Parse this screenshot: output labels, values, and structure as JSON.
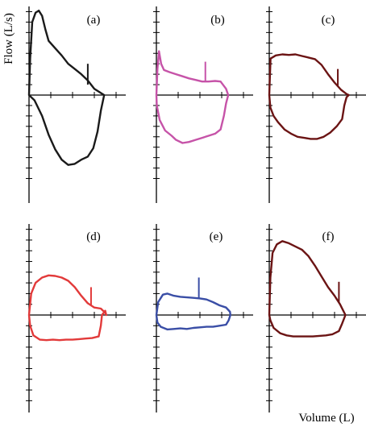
{
  "chart_data": {
    "type": "line",
    "xlabel": "Volume (L)",
    "ylabel": "Flow (L/s)",
    "grid": false,
    "panels": [
      {
        "label": "(a)",
        "color": "#1a1a1a",
        "xlim": [
          0,
          4
        ],
        "ylim": [
          -8,
          8.5
        ],
        "marker": {
          "x": 2.7,
          "y1": 1.0,
          "y2": 3.0
        },
        "expiratory": [
          [
            0,
            0
          ],
          [
            0.05,
            3.5
          ],
          [
            0.15,
            7.0
          ],
          [
            0.3,
            7.9
          ],
          [
            0.45,
            8.1
          ],
          [
            0.6,
            7.6
          ],
          [
            0.75,
            6.3
          ],
          [
            0.9,
            5.2
          ],
          [
            1.2,
            4.5
          ],
          [
            1.5,
            3.8
          ],
          [
            1.8,
            3.0
          ],
          [
            2.1,
            2.5
          ],
          [
            2.4,
            2.0
          ],
          [
            2.7,
            1.4
          ],
          [
            3.0,
            0.6
          ],
          [
            3.3,
            0.2
          ],
          [
            3.45,
            0
          ]
        ],
        "inspiratory": [
          [
            0,
            0
          ],
          [
            0.25,
            -0.5
          ],
          [
            0.6,
            -2.0
          ],
          [
            0.9,
            -3.8
          ],
          [
            1.2,
            -5.2
          ],
          [
            1.5,
            -6.2
          ],
          [
            1.8,
            -6.7
          ],
          [
            2.1,
            -6.6
          ],
          [
            2.4,
            -6.2
          ],
          [
            2.7,
            -5.9
          ],
          [
            2.95,
            -5.1
          ],
          [
            3.15,
            -3.5
          ],
          [
            3.3,
            -1.5
          ],
          [
            3.45,
            0
          ]
        ]
      },
      {
        "label": "(b)",
        "color": "#c653a8",
        "xlim": [
          0,
          4
        ],
        "ylim": [
          -8,
          8.5
        ],
        "marker": {
          "x": 2.25,
          "y1": 1.3,
          "y2": 3.2
        },
        "expiratory": [
          [
            0,
            0
          ],
          [
            0.05,
            2.5
          ],
          [
            0.12,
            4.2
          ],
          [
            0.22,
            3.0
          ],
          [
            0.35,
            2.4
          ],
          [
            0.6,
            2.2
          ],
          [
            0.9,
            2.0
          ],
          [
            1.2,
            1.8
          ],
          [
            1.5,
            1.6
          ],
          [
            1.8,
            1.45
          ],
          [
            2.1,
            1.3
          ],
          [
            2.4,
            1.3
          ],
          [
            2.7,
            1.35
          ],
          [
            2.95,
            1.3
          ],
          [
            3.2,
            0.6
          ],
          [
            3.3,
            0
          ]
        ],
        "inspiratory": [
          [
            0,
            0
          ],
          [
            0.02,
            -1.0
          ],
          [
            0.15,
            -2.4
          ],
          [
            0.4,
            -3.4
          ],
          [
            0.7,
            -3.9
          ],
          [
            0.9,
            -4.3
          ],
          [
            1.2,
            -4.6
          ],
          [
            1.5,
            -4.5
          ],
          [
            1.8,
            -4.3
          ],
          [
            2.1,
            -4.1
          ],
          [
            2.4,
            -3.9
          ],
          [
            2.7,
            -3.7
          ],
          [
            2.95,
            -3.3
          ],
          [
            3.1,
            -2.0
          ],
          [
            3.2,
            -0.8
          ],
          [
            3.3,
            0
          ]
        ]
      },
      {
        "label": "(c)",
        "color": "#6b1414",
        "xlim": [
          0,
          4
        ],
        "ylim": [
          -8,
          8.5
        ],
        "marker": {
          "x": 3.15,
          "y1": 0.9,
          "y2": 2.5
        },
        "expiratory": [
          [
            0,
            0
          ],
          [
            0.06,
            3.5
          ],
          [
            0.3,
            3.8
          ],
          [
            0.6,
            3.9
          ],
          [
            0.9,
            3.85
          ],
          [
            1.2,
            3.9
          ],
          [
            1.5,
            3.75
          ],
          [
            1.8,
            3.6
          ],
          [
            2.1,
            3.45
          ],
          [
            2.4,
            2.9
          ],
          [
            2.7,
            2.0
          ],
          [
            3.0,
            1.2
          ],
          [
            3.3,
            0.5
          ],
          [
            3.55,
            0.1
          ],
          [
            3.65,
            0
          ]
        ],
        "inspiratory": [
          [
            0,
            0
          ],
          [
            0.05,
            -1.2
          ],
          [
            0.2,
            -2.0
          ],
          [
            0.4,
            -2.6
          ],
          [
            0.7,
            -3.3
          ],
          [
            1.0,
            -3.7
          ],
          [
            1.3,
            -4.0
          ],
          [
            1.6,
            -4.1
          ],
          [
            1.9,
            -4.2
          ],
          [
            2.2,
            -4.2
          ],
          [
            2.5,
            -4.0
          ],
          [
            2.8,
            -3.6
          ],
          [
            3.1,
            -3.0
          ],
          [
            3.35,
            -2.3
          ],
          [
            3.45,
            -1.0
          ],
          [
            3.55,
            -0.2
          ],
          [
            3.65,
            0
          ]
        ]
      },
      {
        "label": "(d)",
        "color": "#e23a3a",
        "xlim": [
          0,
          4
        ],
        "ylim": [
          -8,
          8.5
        ],
        "marker": {
          "x": 2.85,
          "y1": 0.9,
          "y2": 2.6
        },
        "expiratory": [
          [
            0,
            0
          ],
          [
            0.1,
            2.0
          ],
          [
            0.3,
            3.0
          ],
          [
            0.6,
            3.5
          ],
          [
            0.9,
            3.7
          ],
          [
            1.2,
            3.65
          ],
          [
            1.5,
            3.5
          ],
          [
            1.8,
            3.2
          ],
          [
            2.1,
            2.6
          ],
          [
            2.4,
            1.8
          ],
          [
            2.7,
            1.1
          ],
          [
            3.0,
            0.7
          ],
          [
            3.3,
            0.6
          ],
          [
            3.5,
            0.2
          ],
          [
            3.55,
            0
          ]
        ],
        "inspiratory": [
          [
            0,
            0
          ],
          [
            0.05,
            -1.0
          ],
          [
            0.2,
            -1.9
          ],
          [
            0.5,
            -2.3
          ],
          [
            0.8,
            -2.35
          ],
          [
            1.1,
            -2.3
          ],
          [
            1.4,
            -2.35
          ],
          [
            1.7,
            -2.3
          ],
          [
            2.0,
            -2.3
          ],
          [
            2.3,
            -2.25
          ],
          [
            2.6,
            -2.2
          ],
          [
            2.9,
            -2.15
          ],
          [
            3.2,
            -2.0
          ],
          [
            3.3,
            -1.0
          ],
          [
            3.35,
            0
          ],
          [
            3.5,
            0.4
          ],
          [
            3.55,
            0
          ]
        ]
      },
      {
        "label": "(e)",
        "color": "#3a4ea6",
        "xlim": [
          0,
          4
        ],
        "ylim": [
          -8,
          8.5
        ],
        "marker": {
          "x": 1.95,
          "y1": 1.6,
          "y2": 3.5
        },
        "expiratory": [
          [
            0,
            0
          ],
          [
            0.08,
            1.2
          ],
          [
            0.3,
            1.9
          ],
          [
            0.5,
            2.0
          ],
          [
            0.8,
            1.8
          ],
          [
            1.1,
            1.7
          ],
          [
            1.4,
            1.65
          ],
          [
            1.7,
            1.6
          ],
          [
            2.0,
            1.55
          ],
          [
            2.3,
            1.45
          ],
          [
            2.6,
            1.2
          ],
          [
            2.9,
            0.9
          ],
          [
            3.2,
            0.7
          ],
          [
            3.38,
            0.3
          ],
          [
            3.4,
            0
          ]
        ],
        "inspiratory": [
          [
            0,
            0
          ],
          [
            0.05,
            -0.7
          ],
          [
            0.2,
            -1.1
          ],
          [
            0.5,
            -1.35
          ],
          [
            0.8,
            -1.3
          ],
          [
            1.1,
            -1.25
          ],
          [
            1.4,
            -1.3
          ],
          [
            1.7,
            -1.2
          ],
          [
            2.0,
            -1.15
          ],
          [
            2.3,
            -1.1
          ],
          [
            2.6,
            -1.1
          ],
          [
            2.9,
            -1.0
          ],
          [
            3.2,
            -0.9
          ],
          [
            3.32,
            -0.5
          ],
          [
            3.4,
            0
          ]
        ]
      },
      {
        "label": "(f)",
        "color": "#6b1414",
        "xlim": [
          0,
          4
        ],
        "ylim": [
          -8,
          8.5
        ],
        "marker": {
          "x": 3.2,
          "y1": 1.2,
          "y2": 3.1
        },
        "expiratory": [
          [
            0,
            0
          ],
          [
            0.05,
            3.5
          ],
          [
            0.15,
            5.8
          ],
          [
            0.35,
            6.6
          ],
          [
            0.6,
            6.9
          ],
          [
            0.9,
            6.7
          ],
          [
            1.2,
            6.4
          ],
          [
            1.5,
            6.1
          ],
          [
            1.8,
            5.5
          ],
          [
            2.1,
            4.6
          ],
          [
            2.4,
            3.6
          ],
          [
            2.7,
            2.6
          ],
          [
            3.0,
            1.8
          ],
          [
            3.25,
            1.0
          ],
          [
            3.4,
            0.4
          ],
          [
            3.5,
            0
          ]
        ],
        "inspiratory": [
          [
            0,
            0
          ],
          [
            0.05,
            -0.5
          ],
          [
            0.2,
            -1.2
          ],
          [
            0.5,
            -1.7
          ],
          [
            0.8,
            -1.9
          ],
          [
            1.1,
            -2.0
          ],
          [
            1.4,
            -2.0
          ],
          [
            1.7,
            -2.0
          ],
          [
            2.0,
            -2.0
          ],
          [
            2.3,
            -1.95
          ],
          [
            2.6,
            -1.9
          ],
          [
            2.9,
            -1.8
          ],
          [
            3.2,
            -1.5
          ],
          [
            3.35,
            -0.8
          ],
          [
            3.5,
            0
          ]
        ]
      }
    ]
  }
}
